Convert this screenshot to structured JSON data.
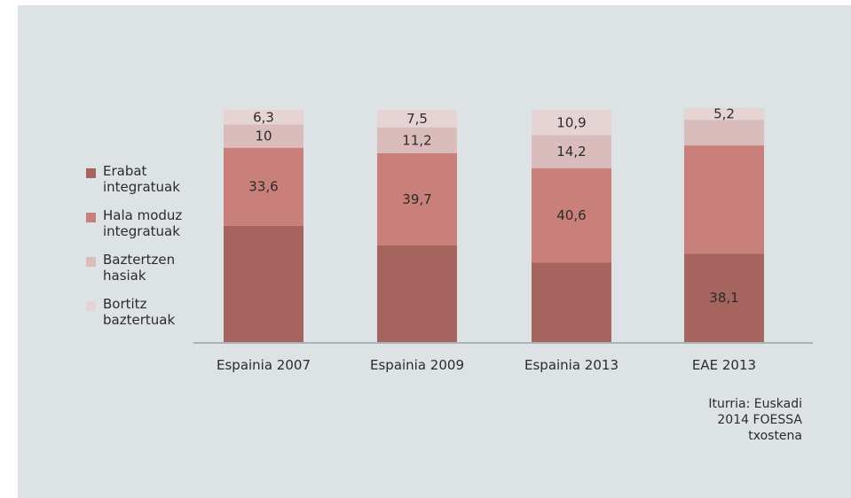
{
  "chart_data": {
    "type": "bar",
    "stacked": true,
    "categories": [
      "Espainia 2007",
      "Espainia 2009",
      "Espainia 2013",
      "EAE 2013"
    ],
    "series": [
      {
        "name": "Erabat integratuak",
        "values": [
          50.1,
          41.6,
          34.3,
          38.1
        ],
        "labels": [
          "",
          "",
          "",
          "38,1"
        ],
        "color": "#a5655e"
      },
      {
        "name": "Hala moduz integratuak",
        "values": [
          33.6,
          39.7,
          40.6,
          46.6
        ],
        "labels": [
          "33,6",
          "39,7",
          "40,6",
          ""
        ],
        "color": "#c9807a"
      },
      {
        "name": "Baztertzen hasiak",
        "values": [
          10,
          11.2,
          14.2,
          11.0
        ],
        "labels": [
          "10",
          "11,2",
          "14,2",
          ""
        ],
        "color": "#dbbcbc"
      },
      {
        "name": "Bortitz baztertuak",
        "values": [
          6.3,
          7.5,
          10.9,
          5.2
        ],
        "labels": [
          "6,3",
          "7,5",
          "10,9",
          "5,2"
        ],
        "color": "#e6d4d5"
      }
    ],
    "ylim": [
      0,
      100
    ],
    "grid": false,
    "legend_position": "left"
  },
  "source_note": "Iturria: Euskadi 2014 FOESSA txostena"
}
